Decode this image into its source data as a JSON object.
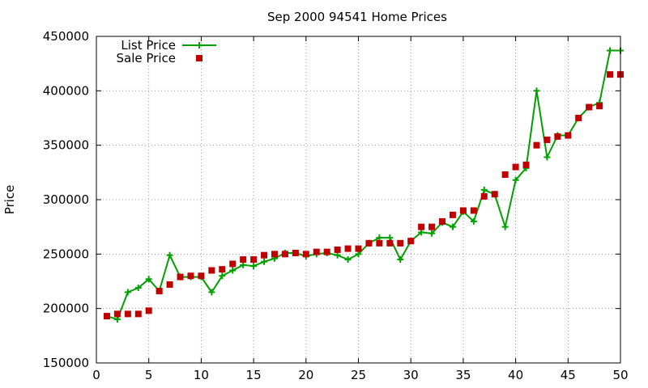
{
  "chart_data": {
    "type": "line",
    "title": "Sep 2000 94541 Home Prices",
    "xlabel": "",
    "ylabel": "Price",
    "xlim": [
      0,
      50
    ],
    "ylim": [
      150000,
      450000
    ],
    "xticks": [
      0,
      5,
      10,
      15,
      20,
      25,
      30,
      35,
      40,
      45,
      50
    ],
    "yticks": [
      150000,
      200000,
      250000,
      300000,
      350000,
      400000,
      450000
    ],
    "grid": true,
    "legend": "top-left",
    "series": [
      {
        "name": "List Price",
        "style": "linespoints",
        "marker": "plus",
        "color": "#00a000",
        "x": [
          1,
          2,
          3,
          4,
          5,
          6,
          7,
          8,
          9,
          10,
          11,
          12,
          13,
          14,
          15,
          16,
          17,
          18,
          19,
          20,
          21,
          22,
          23,
          24,
          25,
          26,
          27,
          28,
          29,
          30,
          31,
          32,
          33,
          34,
          35,
          36,
          37,
          38,
          39,
          40,
          41,
          42,
          43,
          44,
          45,
          46,
          47,
          48,
          49,
          50
        ],
        "y": [
          193000,
          190000,
          215000,
          219000,
          227000,
          216000,
          249000,
          229000,
          229000,
          229000,
          215000,
          230000,
          235000,
          240000,
          239000,
          243000,
          246000,
          251000,
          251000,
          248000,
          250000,
          251000,
          249000,
          245000,
          250000,
          260000,
          265000,
          265000,
          245000,
          262000,
          270000,
          269000,
          279000,
          275000,
          289000,
          280000,
          309000,
          305000,
          275000,
          318000,
          329000,
          400000,
          339000,
          359000,
          359000,
          375000,
          385000,
          389000,
          437000,
          437000
        ]
      },
      {
        "name": "Sale Price",
        "style": "points",
        "marker": "square",
        "color": "#c00000",
        "x": [
          1,
          2,
          3,
          4,
          5,
          6,
          7,
          8,
          9,
          10,
          11,
          12,
          13,
          14,
          15,
          16,
          17,
          18,
          19,
          20,
          21,
          22,
          23,
          24,
          25,
          26,
          27,
          28,
          29,
          30,
          31,
          32,
          33,
          34,
          35,
          36,
          37,
          38,
          39,
          40,
          41,
          42,
          43,
          44,
          45,
          46,
          47,
          48,
          49,
          50
        ],
        "y": [
          193000,
          195000,
          195000,
          195000,
          198000,
          216000,
          222000,
          229000,
          230000,
          230000,
          235000,
          236000,
          241000,
          245000,
          245000,
          249000,
          250000,
          250000,
          251000,
          250000,
          252000,
          252000,
          254000,
          255000,
          255000,
          260000,
          260000,
          260000,
          260000,
          262000,
          275000,
          275000,
          280000,
          286000,
          290000,
          290000,
          303000,
          305000,
          323000,
          330000,
          332000,
          350000,
          355000,
          358000,
          359000,
          375000,
          385000,
          386000,
          415000,
          415000
        ]
      }
    ]
  }
}
